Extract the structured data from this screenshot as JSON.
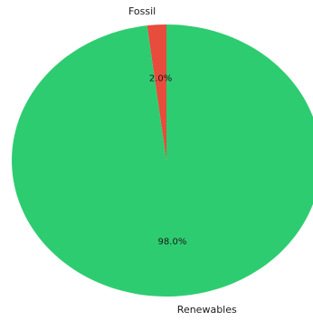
{
  "chart_data": {
    "type": "pie",
    "categories": [
      "Fossil",
      "Renewables"
    ],
    "values": [
      2.0,
      98.0
    ],
    "percent_labels": [
      "2.0%",
      "98.0%"
    ],
    "colors": [
      "#e74c3c",
      "#2ecc71"
    ],
    "start_angle_deg": 90,
    "direction": "counterclockwise",
    "title": "",
    "legend": "none"
  }
}
